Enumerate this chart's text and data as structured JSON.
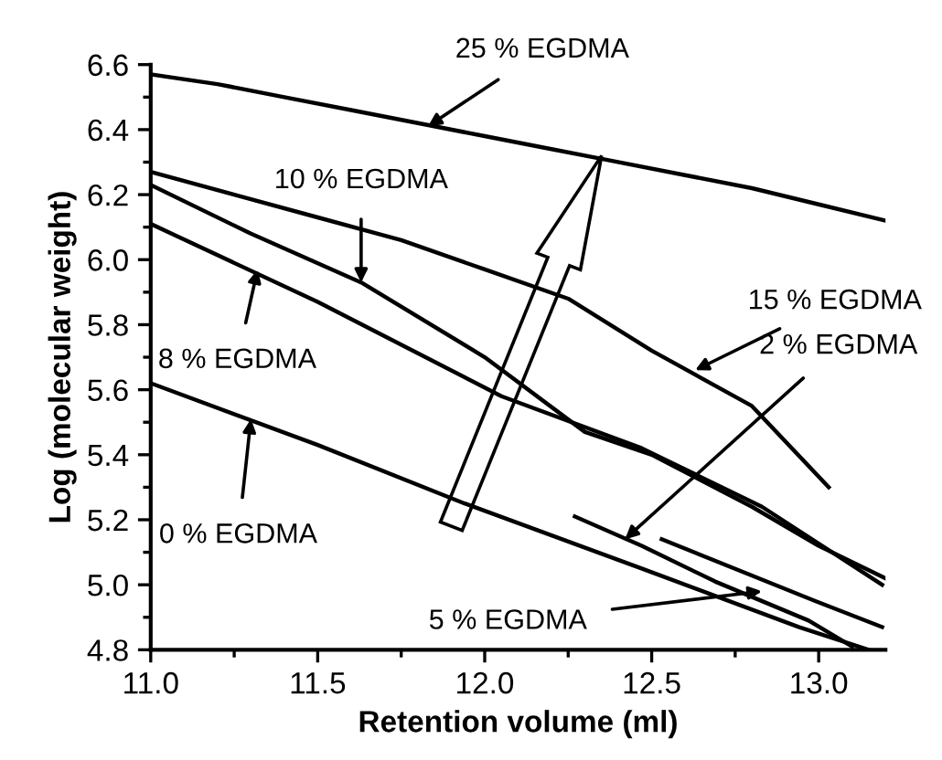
{
  "chart_data": {
    "type": "line",
    "xlabel": "Retention volume (ml)",
    "ylabel": "Log (molecular weight)",
    "xlim": [
      11.0,
      13.2
    ],
    "xticks": [
      {
        "value": 11,
        "label": "11.0"
      },
      11.5,
      {
        "value": 12,
        "label": "12.0"
      },
      12.5,
      {
        "value": 13,
        "label": "13.0"
      }
    ],
    "ylim": [
      4.8,
      6.6
    ],
    "yticks": [
      4.8,
      {
        "value": 5,
        "label": "5.0"
      },
      5.2,
      5.4,
      5.6,
      5.8,
      {
        "value": 6,
        "label": "6.0"
      },
      6.2,
      6.4,
      6.6
    ],
    "grid": false,
    "legend": false,
    "marker": "none",
    "line_style": "solid",
    "series": [
      {
        "color": "#000000",
        "x": [
          11.0,
          11.2,
          11.4,
          11.6,
          11.8,
          12.0,
          12.2,
          12.35,
          12.6,
          12.8,
          13.0,
          13.2
        ],
        "values": [
          6.57,
          6.54,
          6.5,
          6.46,
          6.42,
          6.38,
          6.34,
          6.31,
          6.26,
          6.22,
          6.17,
          6.12
        ]
      },
      {
        "color": "#000000",
        "x": [
          11.0,
          11.25,
          11.5,
          11.75,
          12.0,
          12.25,
          12.5,
          12.8,
          13.03
        ],
        "values": [
          6.27,
          6.2,
          6.13,
          6.06,
          5.97,
          5.88,
          5.72,
          5.55,
          5.3
        ]
      },
      {
        "color": "#000000",
        "x": [
          11.0,
          11.3,
          11.63,
          12.0,
          12.3,
          12.5,
          12.8,
          13.0,
          13.2
        ],
        "values": [
          6.23,
          6.08,
          5.93,
          5.7,
          5.47,
          5.4,
          5.24,
          5.12,
          5.02
        ]
      },
      {
        "color": "#000000",
        "x": [
          11.0,
          11.5,
          12.05,
          12.47,
          12.83,
          13.19
        ],
        "values": [
          6.11,
          5.87,
          5.58,
          5.42,
          5.24,
          5.0
        ]
      },
      {
        "color": "#000000",
        "x": [
          11.0,
          11.5,
          11.94,
          12.47,
          12.94,
          13.15
        ],
        "values": [
          5.62,
          5.43,
          5.25,
          5.05,
          4.87,
          4.8
        ]
      },
      {
        "color": "#000000",
        "x": [
          12.27,
          12.47,
          12.69,
          12.97,
          13.1
        ],
        "values": [
          5.21,
          5.12,
          5.01,
          4.89,
          4.81
        ]
      },
      {
        "color": "#000000",
        "x": [
          12.53,
          12.99,
          13.19
        ],
        "values": [
          5.14,
          4.95,
          4.87
        ]
      }
    ],
    "annotations": [
      {
        "text": "25 % EGDMA",
        "x": 11.83,
        "y": 6.41
      },
      {
        "text": "10 % EGDMA",
        "x": 11.63,
        "y": 5.93
      },
      {
        "text": "15 % EGDMA",
        "x": 12.63,
        "y": 5.66
      },
      {
        "text": "8 % EGDMA",
        "x": 11.32,
        "y": 5.97
      },
      {
        "text": "2 % EGDMA",
        "x": 12.42,
        "y": 5.14
      },
      {
        "text": "0 % EGDMA",
        "x": 11.3,
        "y": 5.51
      },
      {
        "text": "5 % EGDMA",
        "x": 12.83,
        "y": 4.98
      }
    ]
  }
}
